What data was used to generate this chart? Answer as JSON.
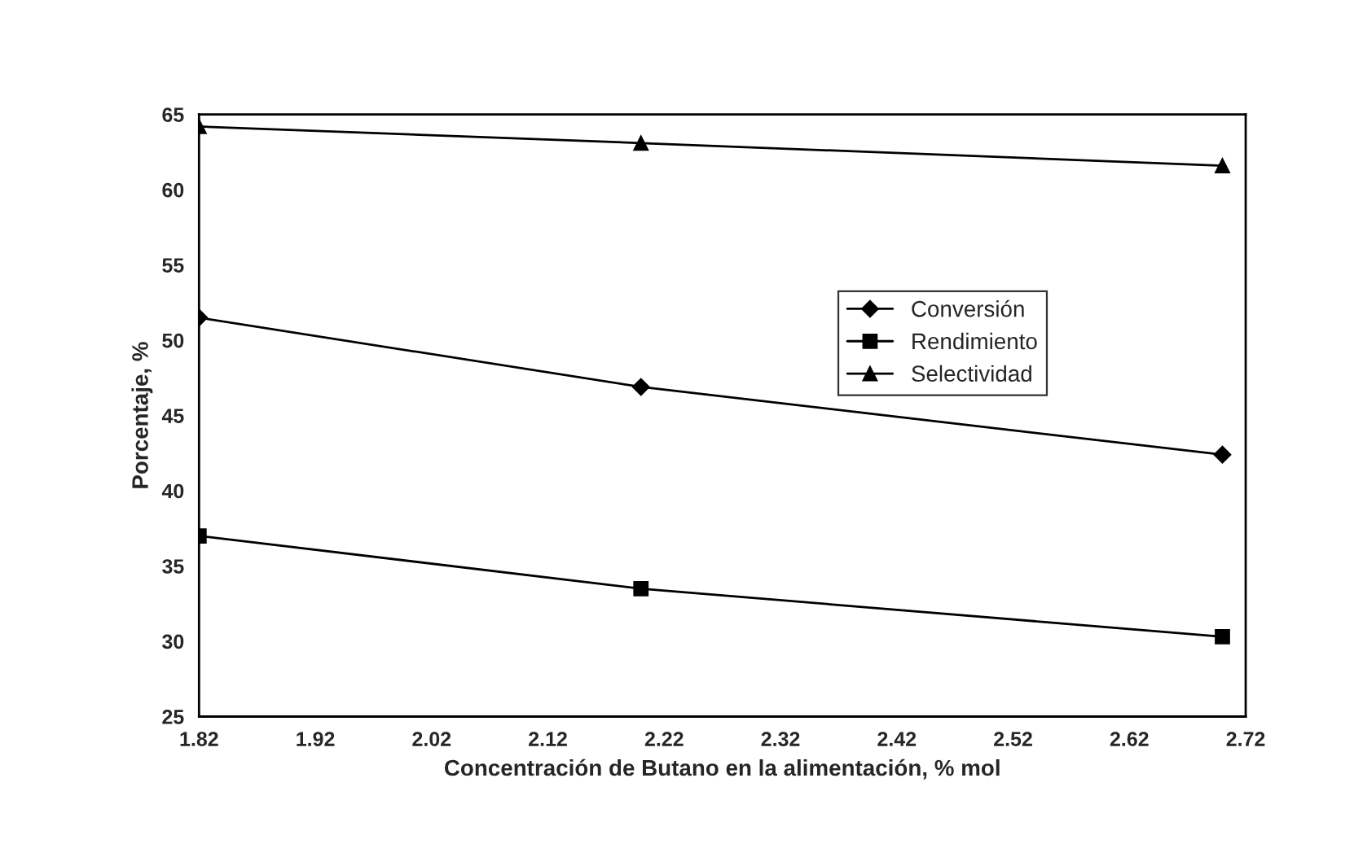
{
  "chart_data": {
    "type": "line",
    "xlabel": "Concentración de Butano en la alimentación, % mol",
    "ylabel": "Porcentaje, %",
    "x": [
      1.82,
      2.2,
      2.7
    ],
    "series": [
      {
        "name": "Conversión",
        "color": "#000000",
        "marker": "diamond",
        "values": [
          51.5,
          46.9,
          42.4
        ]
      },
      {
        "name": "Rendimiento",
        "color": "#000000",
        "marker": "square",
        "values": [
          37.0,
          33.5,
          30.3
        ]
      },
      {
        "name": "Selectividad",
        "color": "#000000",
        "marker": "triangle",
        "values": [
          64.2,
          63.1,
          61.6
        ]
      }
    ],
    "xlim": [
      1.82,
      2.72
    ],
    "xticks": [
      1.82,
      1.92,
      2.02,
      2.12,
      2.22,
      2.32,
      2.42,
      2.52,
      2.62,
      2.72
    ],
    "ylim": [
      25,
      65
    ],
    "yticks": [
      25,
      30,
      35,
      40,
      45,
      50,
      55,
      60,
      65
    ],
    "grid": false,
    "legend": "right",
    "line_style": "solid"
  }
}
